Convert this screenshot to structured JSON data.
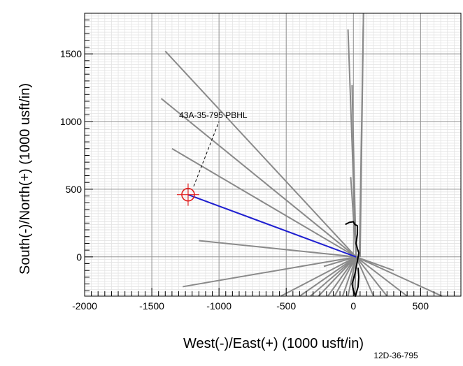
{
  "chart_data": {
    "type": "line",
    "title": "",
    "xlabel": "West(-)/East(+) (1000 usft/in)",
    "ylabel": "South(-)/North(+) (1000 usft/in)",
    "xlim": [
      -2000,
      800
    ],
    "ylim": [
      -290,
      1800
    ],
    "x_ticks": [
      -2000,
      -1500,
      -1000,
      -500,
      0,
      500
    ],
    "y_ticks": [
      0,
      500,
      1000,
      1500
    ],
    "grid": true,
    "footer_label": "12D-36-795",
    "target": {
      "name": "43A-35-795 PBHL",
      "x": -1230,
      "y": 460,
      "label_anchor": {
        "x": -1000,
        "y": 1000
      },
      "color": "#e02020"
    },
    "planned_wellpath": {
      "color": "#1f1fd0",
      "x": [
        20,
        -1230
      ],
      "y": [
        0,
        460
      ]
    },
    "actual_wellpath": {
      "color": "#000000",
      "x": [
        -60,
        -30,
        0,
        10,
        30,
        30,
        20,
        30,
        40,
        35,
        30,
        20,
        10,
        -10,
        0,
        15,
        35,
        40,
        35
      ],
      "y": [
        240,
        255,
        260,
        240,
        230,
        170,
        100,
        60,
        30,
        0,
        -30,
        -80,
        -130,
        -200,
        -250,
        -290,
        -220,
        -150,
        -80
      ]
    },
    "offset_wells": {
      "color": "#8a8a8a",
      "series": [
        {
          "x": [
            20,
            -1400
          ],
          "y": [
            0,
            1520
          ]
        },
        {
          "x": [
            20,
            -1430
          ],
          "y": [
            0,
            1170
          ]
        },
        {
          "x": [
            20,
            -1350
          ],
          "y": [
            0,
            800
          ]
        },
        {
          "x": [
            20,
            -1150
          ],
          "y": [
            0,
            120
          ]
        },
        {
          "x": [
            20,
            -1270
          ],
          "y": [
            0,
            -220
          ]
        },
        {
          "x": [
            20,
            -220
          ],
          "y": [
            0,
            -70
          ]
        },
        {
          "x": [
            20,
            -540
          ],
          "y": [
            0,
            -290
          ]
        },
        {
          "x": [
            20,
            -400
          ],
          "y": [
            0,
            -290
          ]
        },
        {
          "x": [
            20,
            -320
          ],
          "y": [
            0,
            -290
          ]
        },
        {
          "x": [
            20,
            -260
          ],
          "y": [
            0,
            -290
          ]
        },
        {
          "x": [
            20,
            -190
          ],
          "y": [
            0,
            -290
          ]
        },
        {
          "x": [
            20,
            -140
          ],
          "y": [
            0,
            -290
          ]
        },
        {
          "x": [
            20,
            -80
          ],
          "y": [
            0,
            -290
          ]
        },
        {
          "x": [
            20,
            -40
          ],
          "y": [
            0,
            -290
          ]
        },
        {
          "x": [
            20,
            10
          ],
          "y": [
            0,
            -290
          ]
        },
        {
          "x": [
            20,
            150
          ],
          "y": [
            0,
            -290
          ]
        },
        {
          "x": [
            20,
            250
          ],
          "y": [
            0,
            -290
          ]
        },
        {
          "x": [
            20,
            400
          ],
          "y": [
            0,
            -290
          ]
        },
        {
          "x": [
            20,
            660
          ],
          "y": [
            0,
            -290
          ]
        },
        {
          "x": [
            20,
            300
          ],
          "y": [
            0,
            -100
          ]
        },
        {
          "x": [
            20,
            -40
          ],
          "y": [
            0,
            1680
          ]
        },
        {
          "x": [
            20,
            -10
          ],
          "y": [
            0,
            1270
          ]
        },
        {
          "x": [
            20,
            -20
          ],
          "y": [
            0,
            590
          ]
        },
        {
          "x": [
            45,
            75
          ],
          "y": [
            0,
            1800
          ]
        },
        {
          "x": [
            50,
            75
          ],
          "y": [
            0,
            1800
          ]
        }
      ]
    }
  }
}
